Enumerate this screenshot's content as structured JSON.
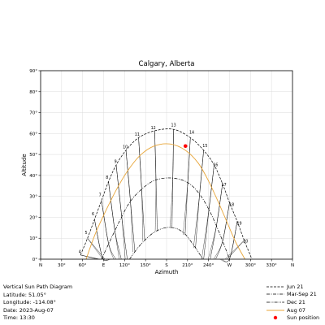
{
  "chart_data": {
    "type": "line",
    "title": "Calgary, Alberta",
    "xlabel": "Azimuth",
    "ylabel": "Altitude",
    "xlim": [
      0,
      360
    ],
    "ylim": [
      0,
      90
    ],
    "x_ticks": [
      {
        "value": 0,
        "label": "N"
      },
      {
        "value": 30,
        "label": "30°"
      },
      {
        "value": 60,
        "label": "60°"
      },
      {
        "value": 90,
        "label": "E"
      },
      {
        "value": 120,
        "label": "120°"
      },
      {
        "value": 150,
        "label": "150°"
      },
      {
        "value": 180,
        "label": "S"
      },
      {
        "value": 210,
        "label": "210°"
      },
      {
        "value": 240,
        "label": "240°"
      },
      {
        "value": 270,
        "label": "W"
      },
      {
        "value": 300,
        "label": "300°"
      },
      {
        "value": 330,
        "label": "330°"
      },
      {
        "value": 360,
        "label": "N"
      }
    ],
    "y_ticks": [
      {
        "value": 0,
        "label": "0°"
      },
      {
        "value": 10,
        "label": "10°"
      },
      {
        "value": 20,
        "label": "20°"
      },
      {
        "value": 30,
        "label": "30°"
      },
      {
        "value": 40,
        "label": "40°"
      },
      {
        "value": 50,
        "label": "50°"
      },
      {
        "value": 60,
        "label": "60°"
      },
      {
        "value": 70,
        "label": "70°"
      },
      {
        "value": 80,
        "label": "80°"
      },
      {
        "value": 90,
        "label": "90°"
      }
    ],
    "grid": true,
    "legend_position": "below-right",
    "series": [
      {
        "name": "Jun 21",
        "style": "dashed",
        "color": "#000000",
        "x": [
          57,
          67,
          77,
          87,
          97,
          108,
          122,
          140,
          163,
          190,
          214,
          233,
          248,
          260,
          270,
          281,
          291,
          302
        ],
        "y": [
          2,
          10,
          19,
          28,
          37,
          45,
          52,
          58,
          61.3,
          62,
          58,
          52,
          45,
          36,
          27,
          18,
          9,
          0
        ]
      },
      {
        "name": "Mar-Sep 21",
        "style": "dashdot",
        "color": "#000000",
        "x": [
          87,
          101,
          114,
          127,
          143,
          162,
          185,
          208,
          225,
          240,
          255,
          270
        ],
        "y": [
          0,
          10,
          19,
          27,
          33,
          37.5,
          38.8,
          37,
          32,
          24,
          13,
          0
        ]
      },
      {
        "name": "Dec 21",
        "style": "dashdotdot",
        "color": "#000000",
        "x": [
          127,
          143,
          163,
          184,
          203,
          218,
          232
        ],
        "y": [
          0,
          7,
          13,
          15.2,
          13,
          7,
          0
        ]
      },
      {
        "name": "Aug 07",
        "style": "solid",
        "color": "#e8a63a",
        "x": [
          65,
          78,
          93,
          108,
          124,
          142,
          162,
          185,
          207,
          225,
          239,
          253,
          266,
          279,
          292
        ],
        "y": [
          0,
          12,
          23,
          33,
          42,
          49.5,
          54,
          55,
          52,
          46,
          38,
          28,
          18,
          8,
          0
        ]
      }
    ],
    "hour_labels": [
      {
        "label": "4",
        "az": 56,
        "alt": 3
      },
      {
        "label": "5",
        "az": 65,
        "alt": 12
      },
      {
        "label": "6",
        "az": 75,
        "alt": 21
      },
      {
        "label": "7",
        "az": 85,
        "alt": 30
      },
      {
        "label": "8",
        "az": 95,
        "alt": 38.5
      },
      {
        "label": "9",
        "az": 107,
        "alt": 46
      },
      {
        "label": "10",
        "az": 121,
        "alt": 53
      },
      {
        "label": "11",
        "az": 138,
        "alt": 59
      },
      {
        "label": "12",
        "az": 161,
        "alt": 62
      },
      {
        "label": "13",
        "az": 190,
        "alt": 63.5
      },
      {
        "label": "14",
        "az": 216,
        "alt": 60
      },
      {
        "label": "15",
        "az": 235,
        "alt": 53.5
      },
      {
        "label": "16",
        "az": 250,
        "alt": 44.5
      },
      {
        "label": "17",
        "az": 262,
        "alt": 35
      },
      {
        "label": "18",
        "az": 273,
        "alt": 25.5
      },
      {
        "label": "19",
        "az": 284,
        "alt": 16.5
      },
      {
        "label": "20",
        "az": 293,
        "alt": 8
      }
    ],
    "sun_position": {
      "name": "Sun position",
      "az": 207,
      "alt": 54,
      "color": "#ff0000"
    }
  },
  "info": {
    "title": "Vertical Sun Path Diagram",
    "latitude": "Latitude: 51.05°",
    "longitude": "Longitude: -114.08°",
    "date": "Date: 2023-Aug-07",
    "time": "Time: 13:30"
  }
}
